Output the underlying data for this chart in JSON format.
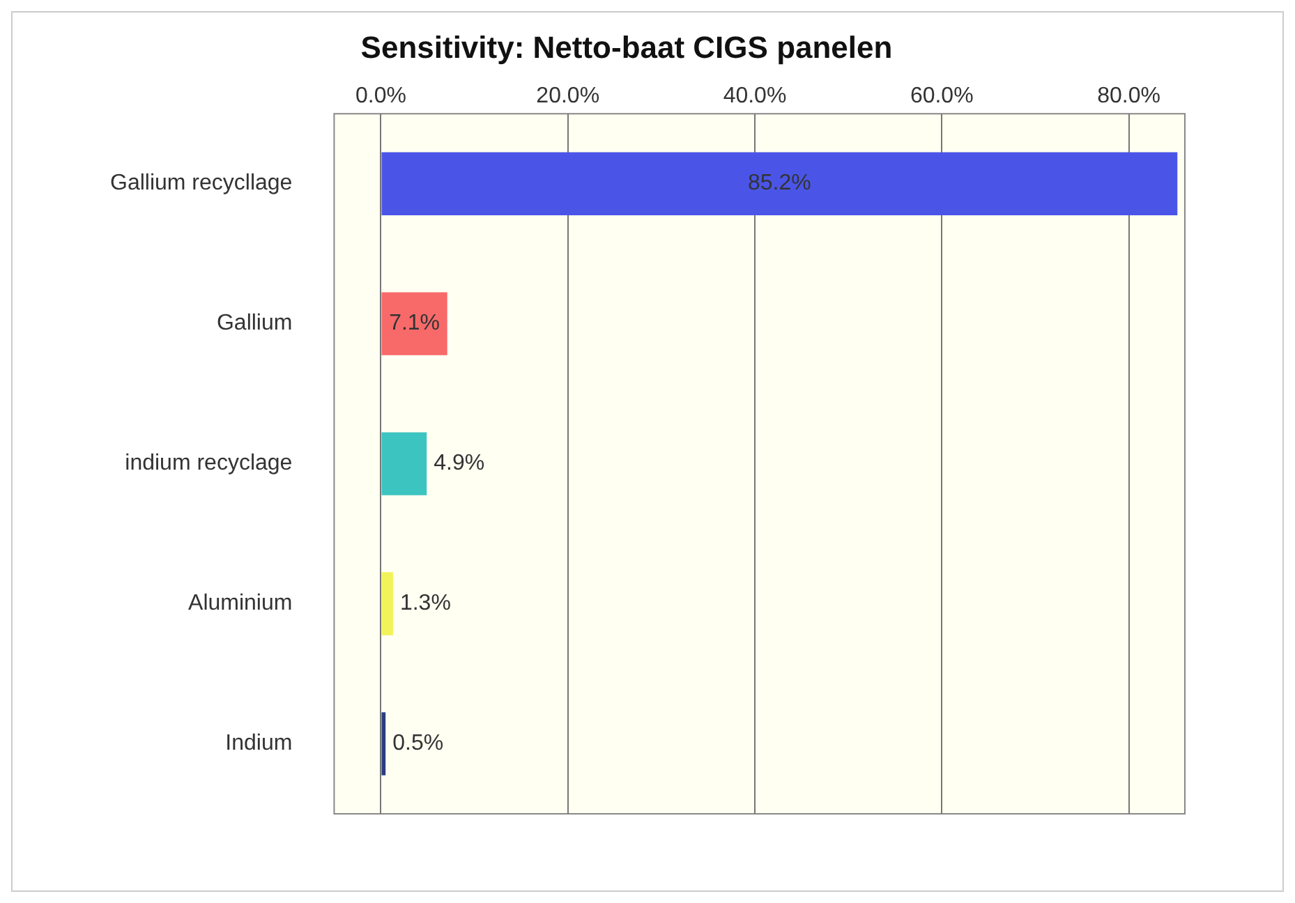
{
  "chart_data": {
    "type": "bar",
    "orientation": "horizontal",
    "title": "Sensitivity: Netto-baat CIGS panelen",
    "categories": [
      "Gallium recycllage",
      "Gallium",
      "indium recyclage",
      "Aluminium",
      "Indium"
    ],
    "values": [
      85.2,
      7.1,
      4.9,
      1.3,
      0.5
    ],
    "colors": [
      "#4a55e8",
      "#f86a6a",
      "#3cc4c0",
      "#f2f25a",
      "#2a3c80"
    ],
    "value_labels": [
      "85.2%",
      "7.1%",
      "4.9%",
      "1.3%",
      "0.5%"
    ],
    "xlim": [
      -5,
      86
    ],
    "xticks": [
      {
        "value": 0,
        "label": "0.0%"
      },
      {
        "value": 20,
        "label": "20.0%"
      },
      {
        "value": 40,
        "label": "40.0%"
      },
      {
        "value": 60,
        "label": "60.0%"
      },
      {
        "value": 80,
        "label": "80.0%"
      }
    ],
    "grid": "x",
    "legend": false
  }
}
